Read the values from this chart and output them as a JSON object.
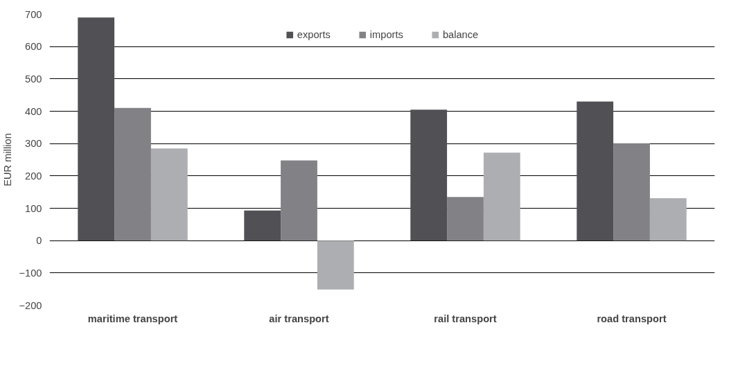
{
  "chart_data": {
    "type": "bar",
    "ylabel": "EUR million",
    "categories": [
      "maritime transport",
      "air transport",
      "rail transport",
      "road transport"
    ],
    "series": [
      {
        "name": "exports",
        "color": "#515055",
        "values": [
          690,
          93,
          405,
          430
        ]
      },
      {
        "name": "imports",
        "color": "#828186",
        "values": [
          410,
          248,
          135,
          301
        ]
      },
      {
        "name": "balance",
        "color": "#adaeb1",
        "values": [
          285,
          -151,
          272,
          131
        ]
      }
    ],
    "ylim": [
      -200,
      700
    ],
    "yticks": [
      -200,
      -100,
      0,
      100,
      200,
      300,
      400,
      500,
      600,
      700
    ],
    "grid": "y",
    "legend": "top"
  }
}
